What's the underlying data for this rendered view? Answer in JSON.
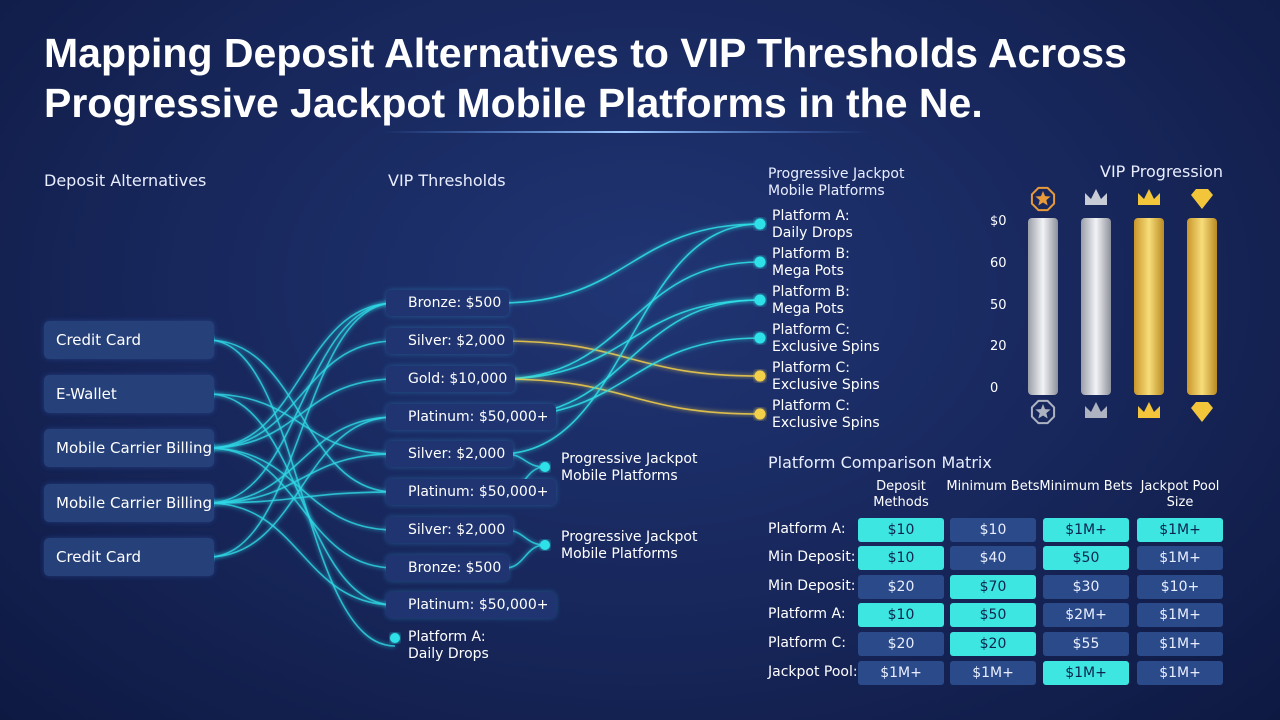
{
  "title": {
    "lines": [
      "Mapping Deposit Alternatives to VIP Thresholds Across",
      "Progressive Jackpot Mobile Platforms in the Ne."
    ]
  },
  "flow": {
    "headings": {
      "deposits": "Deposit Alternatives",
      "thresholds": "VIP Thresholds",
      "platforms": "Progressive Jackpot Mobile Platforms"
    },
    "deposits": [
      "Credit Card",
      "E-Wallet",
      "Mobile Carrier Billing",
      "Mobile Carrier Billing",
      "Credit Card"
    ],
    "thresholds": [
      "Bronze: $500",
      "Silver: $2,000",
      "Gold: $10,000",
      "Platinum: $50,000+",
      "Silver: $2,000",
      "Platinum: $50,000+",
      "Silver: $2,000",
      "Bronze: $500",
      "Platinum: $50,000+",
      "Platform A: Daily Drops"
    ],
    "groups": [
      "Progressive Jackpot Mobile Platforms",
      "Progressive Jackpot Mobile Platforms"
    ],
    "platforms": [
      {
        "name": "Platform A:",
        "desc": "Daily Drops",
        "color": "#2fe0e8"
      },
      {
        "name": "Platform B:",
        "desc": "Mega Pots",
        "color": "#2fe0e8"
      },
      {
        "name": "Platform B:",
        "desc": "Mega Pots",
        "color": "#2fe0e8"
      },
      {
        "name": "Platform C:",
        "desc": "Exclusive Spins",
        "color": "#2fe0e8"
      },
      {
        "name": "Platform C:",
        "desc": "Exclusive Spins",
        "color": "#f3d04a"
      },
      {
        "name": "Platform C:",
        "desc": "Exclusive Spins",
        "color": "#f3d04a"
      }
    ]
  },
  "vip": {
    "title": "VIP Progression",
    "axis_labels": [
      "$0",
      "60",
      "50",
      "20",
      "0"
    ],
    "bar_colors": [
      "silver",
      "silver",
      "gold",
      "gold"
    ]
  },
  "matrix": {
    "title": "Platform Comparison Matrix",
    "headers": [
      "Deposit Methods",
      "Minimum Bets",
      "Minimum Bets",
      "Jackpot Pool Size"
    ],
    "rows": [
      {
        "label": "Platform A:",
        "cells": [
          "$10",
          "$10",
          "$1M+",
          "$1M+"
        ],
        "highlight": [
          true,
          false,
          true,
          true
        ]
      },
      {
        "label": "Min Deposit:",
        "cells": [
          "$10",
          "$40",
          "$50",
          "$1M+"
        ],
        "highlight": [
          true,
          false,
          true,
          false
        ]
      },
      {
        "label": "Min Deposit:",
        "cells": [
          "$20",
          "$70",
          "$30",
          "$10+"
        ],
        "highlight": [
          false,
          true,
          false,
          false
        ]
      },
      {
        "label": "Platform A:",
        "cells": [
          "$10",
          "$50",
          "$2M+",
          "$1M+"
        ],
        "highlight": [
          true,
          true,
          false,
          false
        ]
      },
      {
        "label": "Platform C:",
        "cells": [
          "$20",
          "$20",
          "$55",
          "$1M+"
        ],
        "highlight": [
          false,
          true,
          false,
          false
        ]
      },
      {
        "label": "Jackpot Pool:",
        "cells": [
          "$1M+",
          "$1M+",
          "$1M+",
          "$1M+"
        ],
        "highlight": [
          false,
          false,
          true,
          false
        ]
      }
    ]
  }
}
